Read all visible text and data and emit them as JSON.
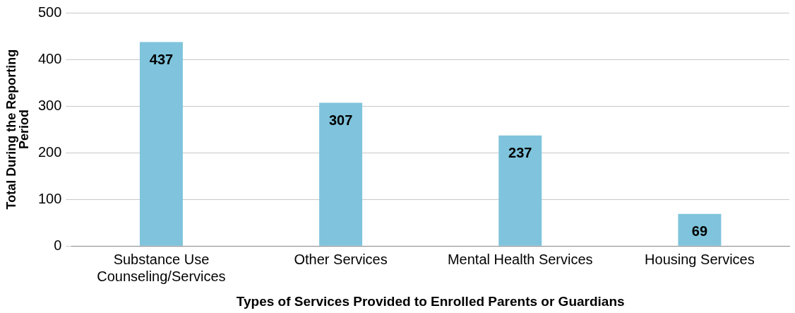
{
  "chart_data": {
    "type": "bar",
    "xlabel": "Types of Services Provided to Enrolled Parents or Guardians",
    "ylabel": "Total During the Reporting Period",
    "categories": [
      "Substance Use Counseling/Services",
      "Other Services",
      "Mental Health Services",
      "Housing Services"
    ],
    "values": [
      437,
      307,
      237,
      69
    ],
    "color": "#7fc4dc",
    "ylim": [
      0,
      500
    ],
    "yticks": [
      0,
      100,
      200,
      300,
      400,
      500
    ],
    "grid": "y",
    "data_labels": true,
    "legend": false
  }
}
